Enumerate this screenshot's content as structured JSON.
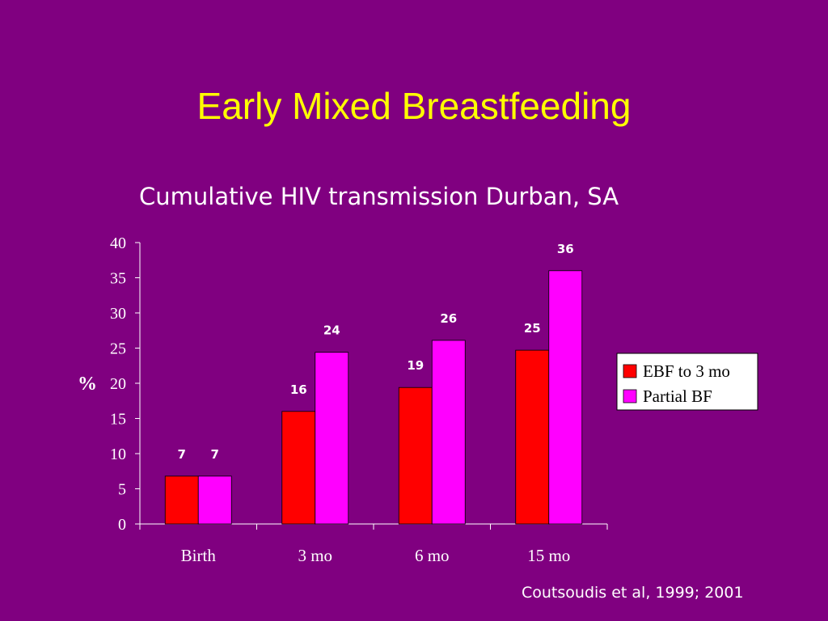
{
  "slide": {
    "title": "Early Mixed Breastfeeding",
    "citation": "Coutsoudis et al, 1999; 2001"
  },
  "colors": {
    "background": "#800080",
    "title": "#ffff00",
    "text": "#ffffff",
    "series_ebf": "#ff0000",
    "series_partial": "#ff00ff"
  },
  "chart_data": {
    "type": "bar",
    "title": "Cumulative HIV transmission Durban, SA",
    "xlabel": "",
    "ylabel": "%",
    "ylim": [
      0,
      40
    ],
    "yticks": [
      0,
      5,
      10,
      15,
      20,
      25,
      30,
      35,
      40
    ],
    "categories": [
      "Birth",
      "3 mo",
      "6 mo",
      "15 mo"
    ],
    "series": [
      {
        "name": "EBF to 3 mo",
        "color": "#ff0000",
        "values": [
          6.8,
          16.0,
          19.4,
          24.7
        ],
        "labels": [
          "7",
          "16",
          "19",
          "25"
        ]
      },
      {
        "name": "Partial BF",
        "color": "#ff00ff",
        "values": [
          6.8,
          24.4,
          26.1,
          36.0
        ],
        "labels": [
          "7",
          "24",
          "26",
          "36"
        ]
      }
    ],
    "legend": "right",
    "grid": false
  }
}
